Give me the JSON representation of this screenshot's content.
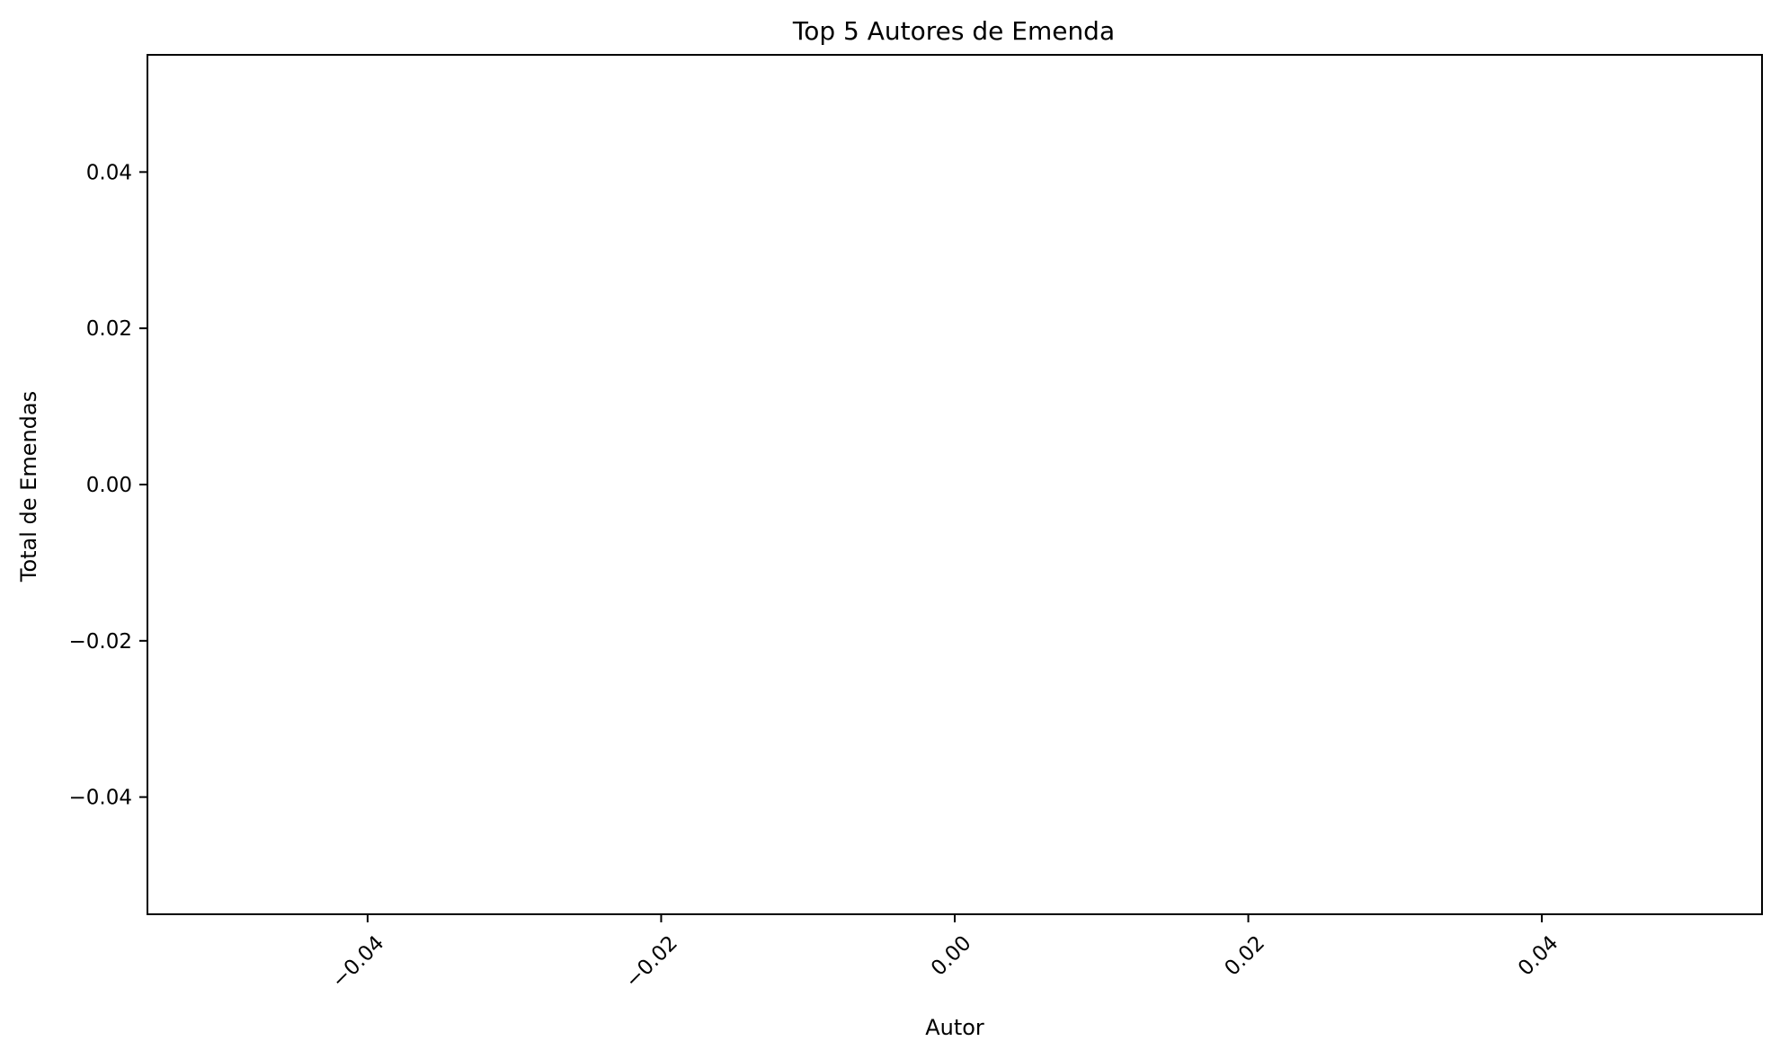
{
  "chart_data": {
    "type": "bar",
    "title": "Top 5 Autores de Emenda",
    "xlabel": "Autor",
    "ylabel": "Total de Emendas",
    "categories": [],
    "values": [],
    "xlim": [
      -0.055,
      0.055
    ],
    "ylim": [
      -0.055,
      0.055
    ],
    "xticks": [
      -0.04,
      -0.02,
      0.0,
      0.02,
      0.04
    ],
    "xtick_labels": [
      "−0.04",
      "−0.02",
      "0.00",
      "0.02",
      "0.04"
    ],
    "xtick_rotation": 45,
    "yticks": [
      0.04,
      0.02,
      0.0,
      -0.02,
      -0.04
    ],
    "ytick_labels": [
      "0.04",
      "0.02",
      "0.00",
      "−0.02",
      "−0.04"
    ],
    "grid": false,
    "legend": "none",
    "colors": {
      "axis": "#000000",
      "background": "#ffffff"
    }
  }
}
